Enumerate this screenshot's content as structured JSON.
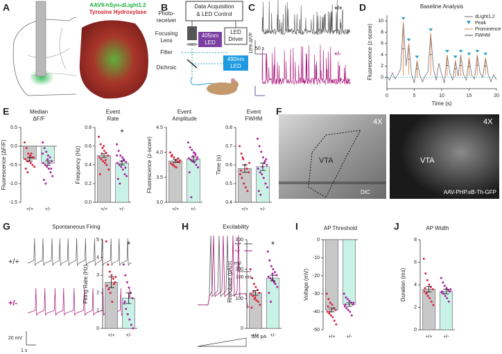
{
  "letters": [
    "A",
    "B",
    "C",
    "D",
    "E",
    "F",
    "G",
    "H",
    "I",
    "J"
  ],
  "panel_a": {
    "virus": "AAV9-hSyn-dLight1.2",
    "stain": "Tyrosine Hydroxylase"
  },
  "panel_b": {
    "photoreceiver": [
      "Photo-",
      "receiver"
    ],
    "daq": [
      "Data Acquisition",
      "& LED Control"
    ],
    "lens": [
      "Focusing",
      "Lens"
    ],
    "led405": [
      "405nm",
      "LED"
    ],
    "driver": [
      "LED",
      "Driver"
    ],
    "filter": "Filter",
    "led490": [
      "490nm",
      "LED"
    ],
    "dichroic": "Dichroic"
  },
  "panel_c": {
    "wt": "+/+",
    "het": "+/-",
    "scale_y": "10% ΔF/F",
    "scale_x": "50 s"
  },
  "panel_f": {
    "mag1": "4X",
    "vta1": "VTA",
    "mode1": "DIC",
    "mag2": "4X",
    "vta2": "VTA",
    "mode2": "AAV-PHP.eB-Th-GFP"
  },
  "panel_g": {
    "title": "Spontaneous Firing",
    "wt": "+/+",
    "het": "+/-",
    "scale_y": "20 mV",
    "scale_x": "1 s"
  },
  "panel_h": {
    "title": "Excitability",
    "legend": [
      "+/+",
      "+/-"
    ],
    "scale_y": "10 mV",
    "scale_x": "100 ms",
    "stim": "500 pA"
  },
  "chart_data": [
    {
      "type": "line",
      "title": "Baseline Analysis",
      "xlabel": "Time (s)",
      "ylabel": "Fluorescence (z-score)",
      "xlim": [
        0,
        20
      ],
      "xticks": [
        0,
        5,
        10,
        15,
        20
      ],
      "ylim": [
        -2,
        11
      ],
      "yticks": [
        0,
        2,
        4,
        6,
        8,
        10
      ],
      "legend": "upper right",
      "series": [
        {
          "name": "dLight1.2",
          "color": "#6b6b6b",
          "x": [
            0,
            0.5,
            1,
            1.5,
            2,
            2.5,
            3,
            3.5,
            4,
            4.5,
            5,
            5.5,
            6,
            6.5,
            7,
            7.5,
            8,
            8.5,
            9,
            9.5,
            10,
            10.5,
            11,
            11.5,
            12,
            12.5,
            13,
            13.5,
            14,
            14.5,
            15,
            15.5,
            16,
            16.5,
            17,
            17.5,
            18,
            18.5,
            19,
            19.5,
            20
          ],
          "values": [
            0.2,
            -0.5,
            0.8,
            -0.3,
            0.5,
            1.5,
            9.8,
            2,
            6,
            0.5,
            -1,
            3,
            0.5,
            -0.8,
            0.3,
            1,
            7.8,
            1.5,
            -0.5,
            2.5,
            0.5,
            -1,
            4,
            0.8,
            -0.5,
            3,
            0.2,
            4,
            0.5,
            -0.5,
            3.5,
            0.3,
            -0.3,
            4,
            0.8,
            0,
            3.5,
            0.5,
            -0.8,
            0.5,
            -0.5
          ]
        },
        {
          "name": "Peak",
          "color": "#2a9fc4",
          "x": [
            3,
            4,
            5.5,
            8,
            11,
            12.5,
            13.5,
            15,
            16.5,
            18
          ],
          "values": [
            9.8,
            6,
            3,
            7.8,
            4,
            3,
            4,
            3.5,
            4,
            3.5
          ]
        },
        {
          "name": "Prominence",
          "color": "#e8834a",
          "values": [
            9.5,
            5.5,
            3,
            7.5,
            3.8,
            3,
            3.8,
            3.3,
            3.7,
            3
          ]
        },
        {
          "name": "FWHM",
          "color": "#444444",
          "values": [
            0.4,
            0.3,
            0.35,
            0.4,
            0.35,
            0.3,
            0.3,
            0.35,
            0.3,
            0.3
          ]
        }
      ]
    },
    {
      "type": "bar",
      "title": [
        "Median",
        "ΔF/F"
      ],
      "ylabel": "Fluorescence (ΔF/F)",
      "categories": [
        "+/+",
        "+/-"
      ],
      "values": [
        -0.35,
        -0.45
      ],
      "errors": [
        0.05,
        0.06
      ],
      "colors": [
        "#c8c8c8",
        "#c9f2e6"
      ],
      "point_colors": [
        "#d9203a",
        "#a81fa0"
      ],
      "ylim": [
        -1.5,
        0.5
      ],
      "yticks": [
        0.5,
        {
          "value": 0,
          "label": "0.0"
        },
        -0.5,
        {
          "value": -1,
          "label": "-1.0"
        },
        -1.5
      ],
      "points": [
        [
          0.1,
          -0.05,
          -0.2,
          -0.25,
          -0.3,
          -0.3,
          -0.35,
          -0.4,
          -0.4,
          -0.45,
          -0.5,
          -0.55,
          -0.6,
          -0.7,
          -0.3,
          -0.2
        ],
        [
          0.1,
          -0.05,
          -0.15,
          -0.25,
          -0.3,
          -0.4,
          -0.45,
          -0.5,
          -0.55,
          -0.6,
          -0.7,
          -0.8,
          -0.9,
          -1.0,
          -0.35,
          -0.45,
          -0.6,
          -0.2
        ]
      ]
    },
    {
      "type": "bar",
      "title": [
        "Event",
        "Rate"
      ],
      "ylabel": "Frequency (Hz)",
      "categories": [
        "+/+",
        "+/-"
      ],
      "values": [
        0.5,
        0.42
      ],
      "errors": [
        0.02,
        0.02
      ],
      "annotation": "*",
      "colors": [
        "#c8c8c8",
        "#c9f2e6"
      ],
      "point_colors": [
        "#d9203a",
        "#a81fa0"
      ],
      "ylim": [
        0,
        0.8
      ],
      "yticks": [
        {
          "value": 0,
          "label": "0.0"
        },
        0.2,
        0.4,
        0.6,
        0.8
      ],
      "points": [
        [
          0.7,
          0.62,
          0.58,
          0.55,
          0.53,
          0.5,
          0.48,
          0.46,
          0.44,
          0.42,
          0.4,
          0.35,
          0.3,
          0.52,
          0.6,
          0.45
        ],
        [
          0.62,
          0.55,
          0.5,
          0.48,
          0.45,
          0.43,
          0.42,
          0.4,
          0.38,
          0.35,
          0.3,
          0.28,
          0.25,
          0.2,
          0.44,
          0.46,
          0.37,
          0.5
        ]
      ]
    },
    {
      "type": "bar",
      "title": [
        "Event",
        "Amplitude"
      ],
      "ylabel": "Fluorescence (z-score)",
      "categories": [
        "+/+",
        "+/-"
      ],
      "values": [
        3.83,
        3.87
      ],
      "errors": [
        0.03,
        0.04
      ],
      "colors": [
        "#c8c8c8",
        "#c9f2e6"
      ],
      "point_colors": [
        "#d9203a",
        "#a81fa0"
      ],
      "ylim": [
        3,
        4.5
      ],
      "yticks": [
        {
          "value": 3,
          "label": "3.0"
        },
        3.5,
        {
          "value": 4,
          "label": "4.0"
        },
        4.5
      ],
      "points": [
        [
          4.0,
          3.95,
          3.9,
          3.85,
          3.82,
          3.8,
          3.78,
          3.75,
          3.72,
          3.7,
          3.88,
          3.84,
          3.92,
          3.76
        ],
        [
          4.2,
          4.1,
          4.05,
          4.0,
          3.95,
          3.9,
          3.88,
          3.85,
          3.82,
          3.8,
          3.75,
          3.7,
          3.6,
          3.1,
          3.92,
          3.98,
          3.86
        ]
      ]
    },
    {
      "type": "bar",
      "title": [
        "Event",
        "FWHM"
      ],
      "ylabel": "Time (s)",
      "categories": [
        "+/+",
        "+/-"
      ],
      "values": [
        0.58,
        0.59
      ],
      "errors": [
        0.02,
        0.02
      ],
      "colors": [
        "#c8c8c8",
        "#c9f2e6"
      ],
      "point_colors": [
        "#d9203a",
        "#a81fa0"
      ],
      "ylim": [
        0.4,
        0.8
      ],
      "yticks": [
        0.4,
        0.5,
        0.6,
        0.7,
        0.8
      ],
      "points": [
        [
          0.7,
          0.66,
          0.63,
          0.6,
          0.58,
          0.56,
          0.55,
          0.53,
          0.5,
          0.48,
          0.46,
          0.61,
          0.57,
          0.64
        ],
        [
          0.74,
          0.7,
          0.67,
          0.64,
          0.62,
          0.6,
          0.58,
          0.56,
          0.55,
          0.53,
          0.5,
          0.48,
          0.46,
          0.44,
          0.59,
          0.61,
          0.63
        ]
      ]
    },
    {
      "type": "bar",
      "ylabel": "Firing Rate (Hz)",
      "categories": [
        "+/+",
        "+/-"
      ],
      "values": [
        2.6,
        1.7
      ],
      "errors": [
        0.3,
        0.3
      ],
      "annotation": "*",
      "colors": [
        "#c8c8c8",
        "#c9f2e6"
      ],
      "point_colors": [
        "#d9203a",
        "#a81fa0"
      ],
      "ylim": [
        0,
        5
      ],
      "yticks": [
        0,
        1,
        2,
        3,
        4,
        5
      ],
      "points": [
        [
          4.9,
          3.6,
          3.2,
          3.0,
          2.8,
          2.6,
          2.4,
          2.2,
          2.0,
          1.5,
          2.5,
          2.9
        ],
        [
          3.6,
          3.0,
          2.6,
          2.3,
          2.0,
          1.7,
          1.4,
          1.1,
          0.8,
          0.5,
          0.2,
          0,
          1.5
        ]
      ]
    },
    {
      "type": "bar",
      "ylabel": "Rheobase (pA)",
      "categories": [
        "+/+",
        "+/-"
      ],
      "values": [
        120,
        170
      ],
      "errors": [
        8,
        10
      ],
      "annotation": "*",
      "colors": [
        "#c8c8c8",
        "#c9f2e6"
      ],
      "point_colors": [
        "#d9203a",
        "#a81fa0"
      ],
      "ylim": [
        0,
        300
      ],
      "yticks": [
        0,
        100,
        200,
        300
      ],
      "points": [
        [
          200,
          170,
          150,
          140,
          130,
          120,
          115,
          110,
          100,
          95,
          90,
          80,
          70,
          125,
          105
        ],
        [
          260,
          230,
          210,
          200,
          190,
          180,
          175,
          170,
          165,
          160,
          150,
          140,
          120,
          90,
          185,
          155
        ]
      ]
    },
    {
      "type": "bar",
      "title": [
        "AP Threshold"
      ],
      "ylabel": "Voltage (mV)",
      "categories": [
        "+/+",
        "+/-"
      ],
      "values": [
        -39,
        -36
      ],
      "errors": [
        1,
        1
      ],
      "colors": [
        "#c8c8c8",
        "#c9f2e6"
      ],
      "point_colors": [
        "#d9203a",
        "#a81fa0"
      ],
      "ylim": [
        -50,
        0
      ],
      "yticks": [
        0,
        -10,
        -20,
        -30,
        -40,
        -50
      ],
      "points": [
        [
          -30,
          -33,
          -35,
          -36,
          -38,
          -39,
          -40,
          -41,
          -42,
          -43,
          -45,
          -47,
          -37,
          -40
        ],
        [
          -30,
          -32,
          -33,
          -34,
          -35,
          -36,
          -37,
          -38,
          -39,
          -40,
          -42,
          -35,
          -36
        ]
      ]
    },
    {
      "type": "bar",
      "title": [
        "AP Width"
      ],
      "ylabel": "Duration (ms)",
      "categories": [
        "+/+",
        "+/-"
      ],
      "values": [
        3.6,
        3.4
      ],
      "errors": [
        0.25,
        0.2
      ],
      "colors": [
        "#c8c8c8",
        "#c9f2e6"
      ],
      "point_colors": [
        "#d9203a",
        "#a81fa0"
      ],
      "ylim": [
        0,
        8
      ],
      "yticks": [
        0,
        2,
        4,
        6,
        8
      ],
      "points": [
        [
          6.3,
          5.0,
          4.4,
          4.0,
          3.8,
          3.6,
          3.4,
          3.2,
          3.0,
          2.8,
          2.5,
          2.2,
          3.7,
          3.3
        ],
        [
          4.6,
          4.2,
          3.9,
          3.7,
          3.5,
          3.4,
          3.3,
          3.2,
          3.0,
          2.8,
          2.5,
          3.6,
          3.4
        ]
      ]
    }
  ]
}
